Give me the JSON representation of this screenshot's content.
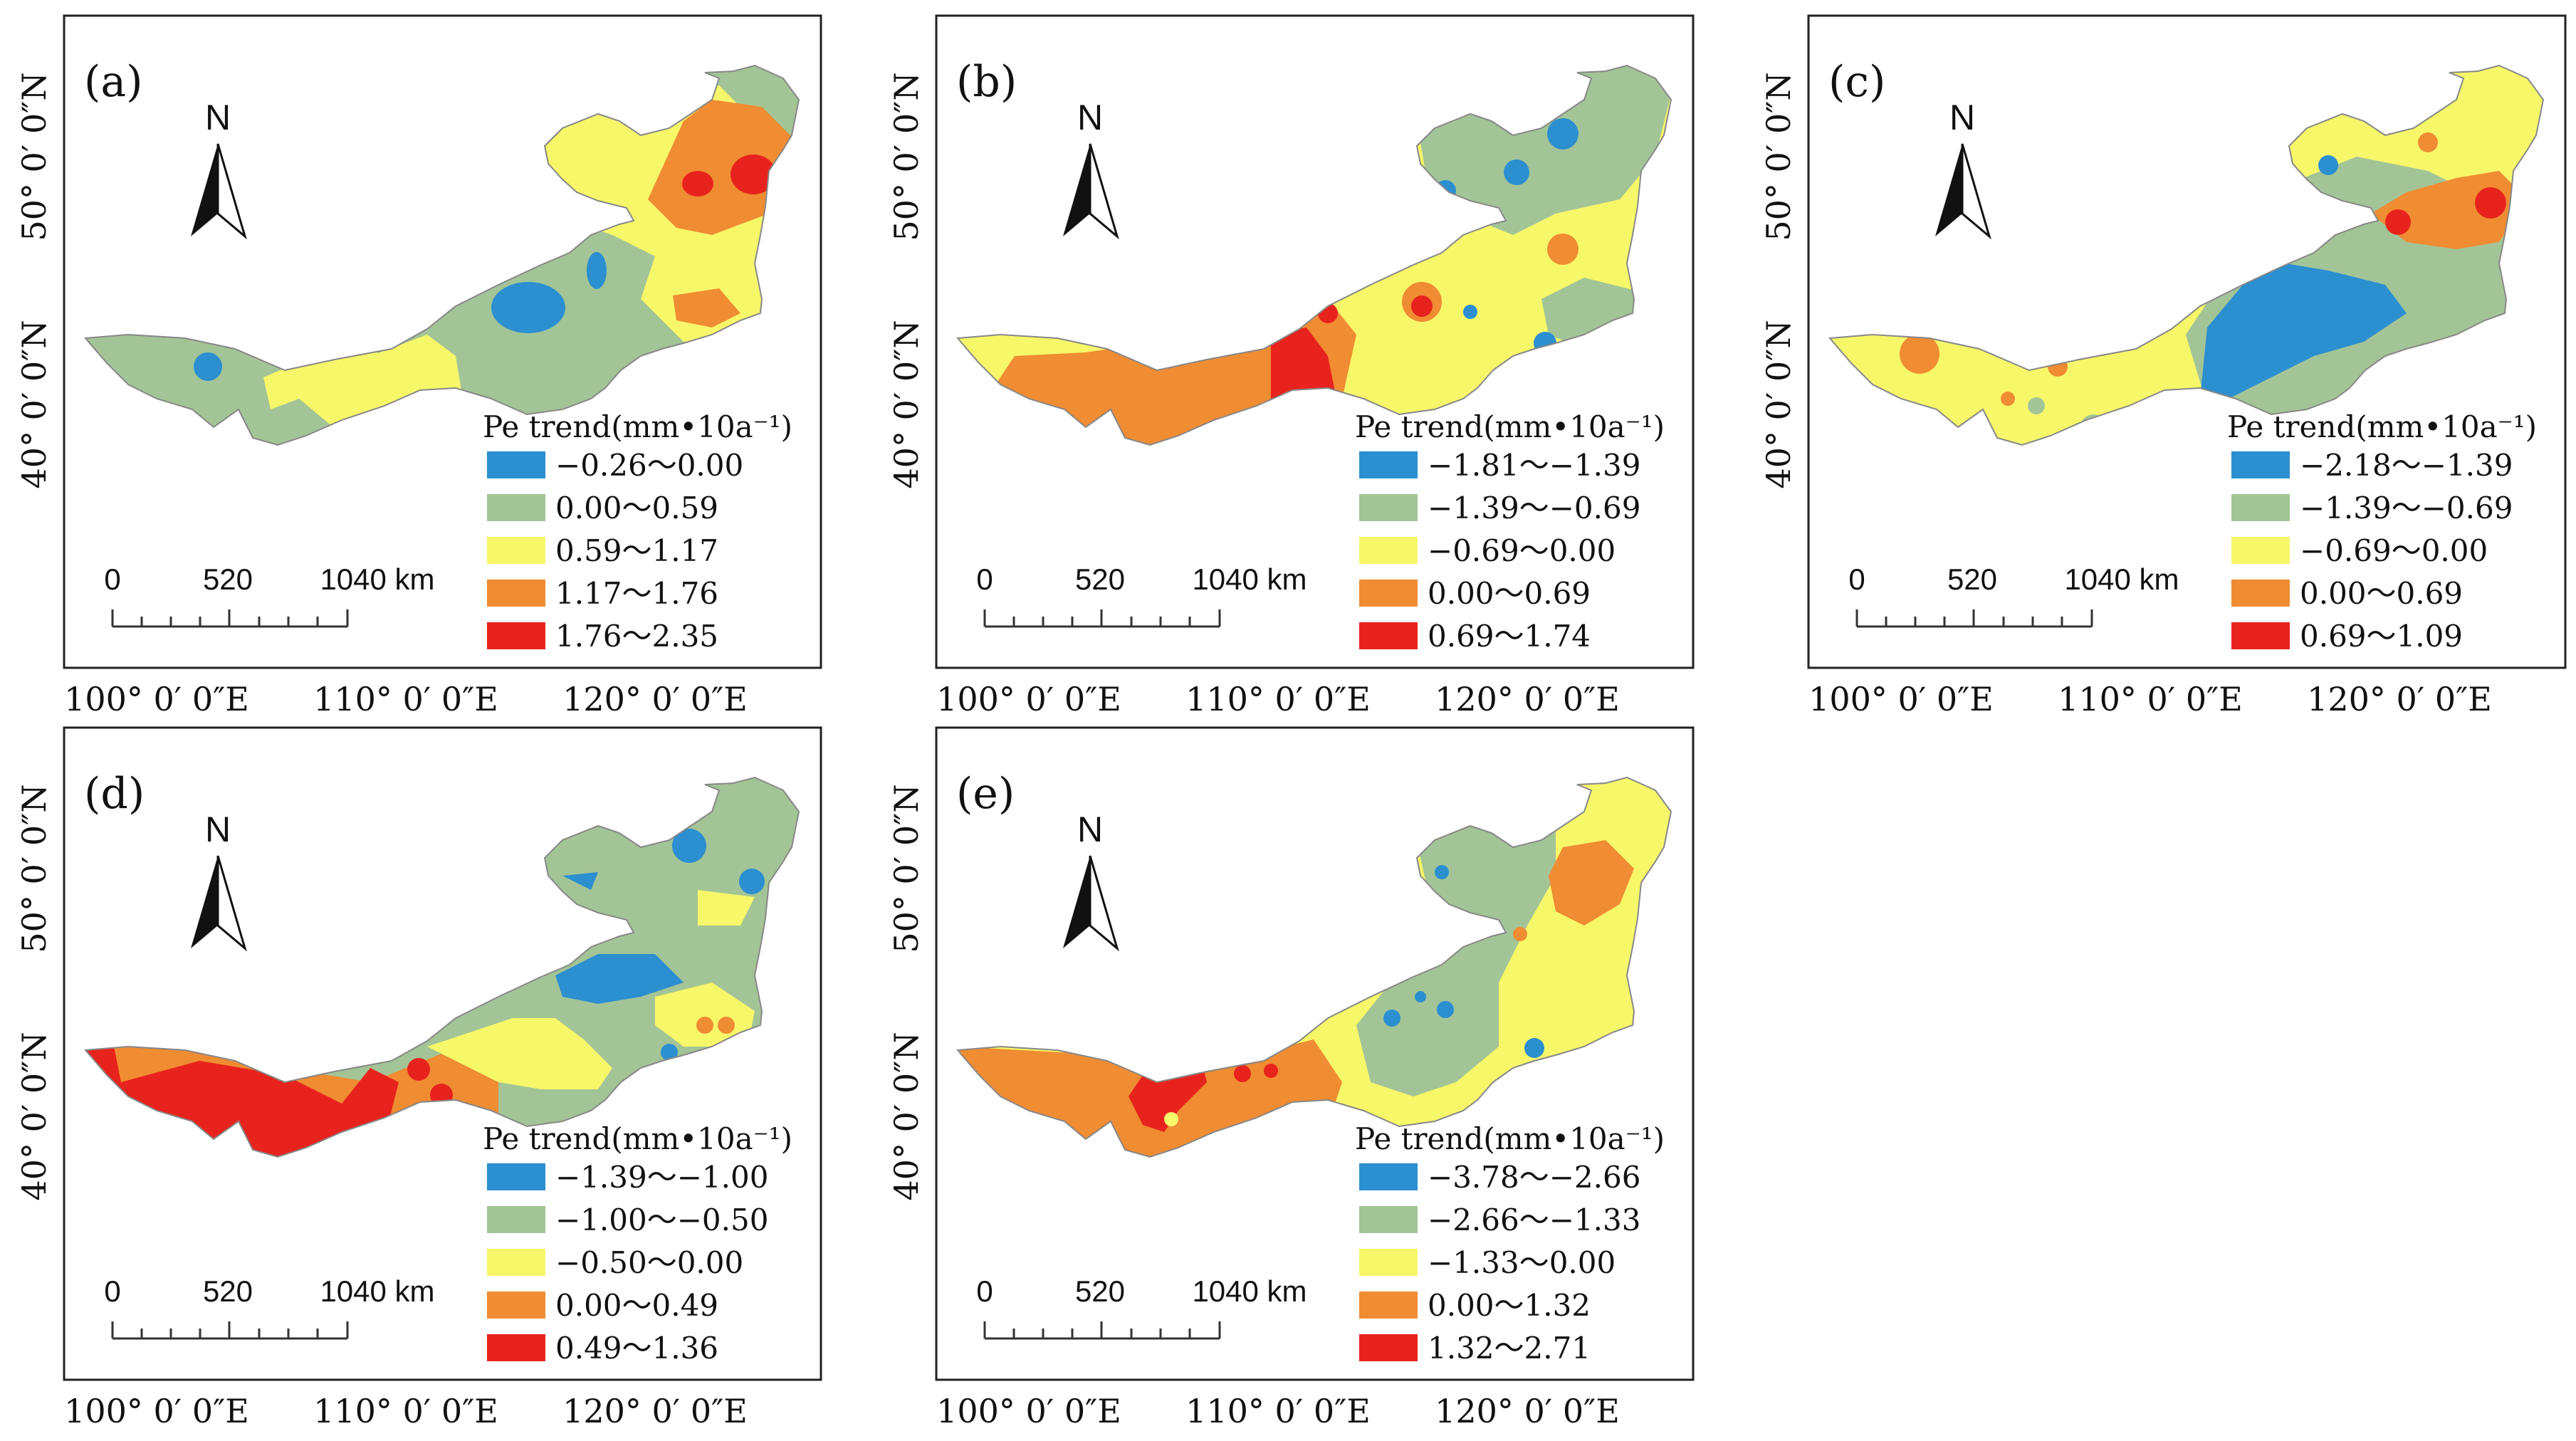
{
  "figure": {
    "legend_title": "Pe trend(mm•10a⁻¹)",
    "north_label": "N",
    "scale": {
      "ticks": [
        "0",
        "520",
        "1040 km"
      ]
    },
    "x_ticks": [
      "100° 0′ 0″E",
      "110° 0′ 0″E",
      "120° 0′ 0″E"
    ],
    "y_ticks": [
      "50° 0′ 0″N",
      "40° 0′ 0″N"
    ],
    "class_colors": [
      "#2b8fd0",
      "#a3c496",
      "#f7f76a",
      "#f08c32",
      "#e8231d"
    ]
  },
  "panels": [
    {
      "label": "(a)",
      "classes": [
        "−0.26～0.00",
        "0.00～0.59",
        "0.59～1.17",
        "1.17～1.76",
        "1.76～2.35"
      ]
    },
    {
      "label": "(b)",
      "classes": [
        "−1.81～−1.39",
        "−1.39～−0.69",
        "−0.69～0.00",
        "0.00～0.69",
        "0.69～1.74"
      ]
    },
    {
      "label": "(c)",
      "classes": [
        "−2.18～−1.39",
        "−1.39～−0.69",
        "−0.69～0.00",
        "0.00～0.69",
        "0.69～1.09"
      ]
    },
    {
      "label": "(d)",
      "classes": [
        "−1.39～−1.00",
        "−1.00～−0.50",
        "−0.50～0.00",
        "0.00～0.49",
        "0.49～1.36"
      ]
    },
    {
      "label": "(e)",
      "classes": [
        "−3.78～−2.66",
        "−2.66～−1.33",
        "−1.33～0.00",
        "0.00～1.32",
        "1.32～2.71"
      ]
    }
  ]
}
